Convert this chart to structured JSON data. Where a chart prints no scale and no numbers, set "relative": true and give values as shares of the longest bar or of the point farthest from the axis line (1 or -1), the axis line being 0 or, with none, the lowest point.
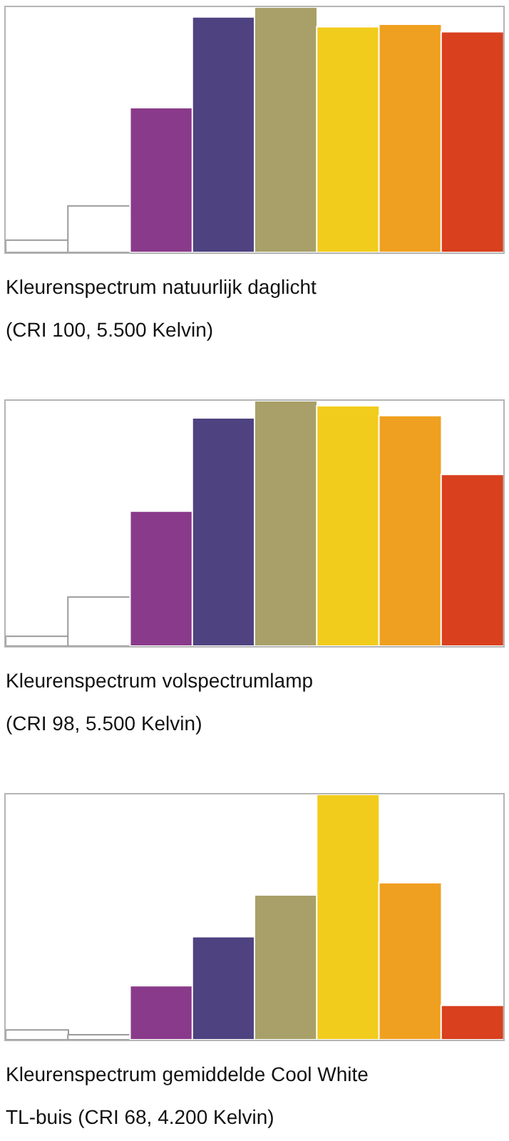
{
  "chart_data": [
    {
      "type": "bar",
      "title": "Kleurenspectrum natuurlijk daglicht\n(CRI 100, 5.500 Kelvin)",
      "relative": true,
      "categories": [
        null,
        null,
        null,
        null,
        null,
        null,
        null,
        null
      ],
      "values": [
        0.05,
        0.19,
        0.59,
        0.96,
        1,
        0.92,
        0.93,
        0.9
      ],
      "colors": [
        "#ffffff",
        "#ffffff",
        "#8a3a8a",
        "#4e4380",
        "#a8a068",
        "#f2cc1c",
        "#f0a020",
        "#d8401e"
      ]
    },
    {
      "type": "bar",
      "title": "Kleurenspectrum volspectrumlamp\n(CRI 98, 5.500 Kelvin)",
      "relative": true,
      "categories": [
        null,
        null,
        null,
        null,
        null,
        null,
        null,
        null
      ],
      "values": [
        0.04,
        0.2,
        0.55,
        0.93,
        1,
        0.98,
        0.94,
        0.7
      ],
      "colors": [
        "#ffffff",
        "#ffffff",
        "#8a3a8a",
        "#4e4380",
        "#a8a068",
        "#f2cc1c",
        "#f0a020",
        "#d8401e"
      ]
    },
    {
      "type": "bar",
      "title": "Kleurenspectrum gemiddelde Cool White\nTL-buis (CRI 68, 4.200 Kelvin)",
      "relative": true,
      "categories": [
        null,
        null,
        null,
        null,
        null,
        null,
        null,
        null
      ],
      "values": [
        0.04,
        0.02,
        0.22,
        0.42,
        0.59,
        1,
        0.64,
        0.14
      ],
      "colors": [
        "#ffffff",
        "#ffffff",
        "#8a3a8a",
        "#4e4380",
        "#a8a068",
        "#f2cc1c",
        "#f0a020",
        "#d8401e"
      ]
    }
  ]
}
